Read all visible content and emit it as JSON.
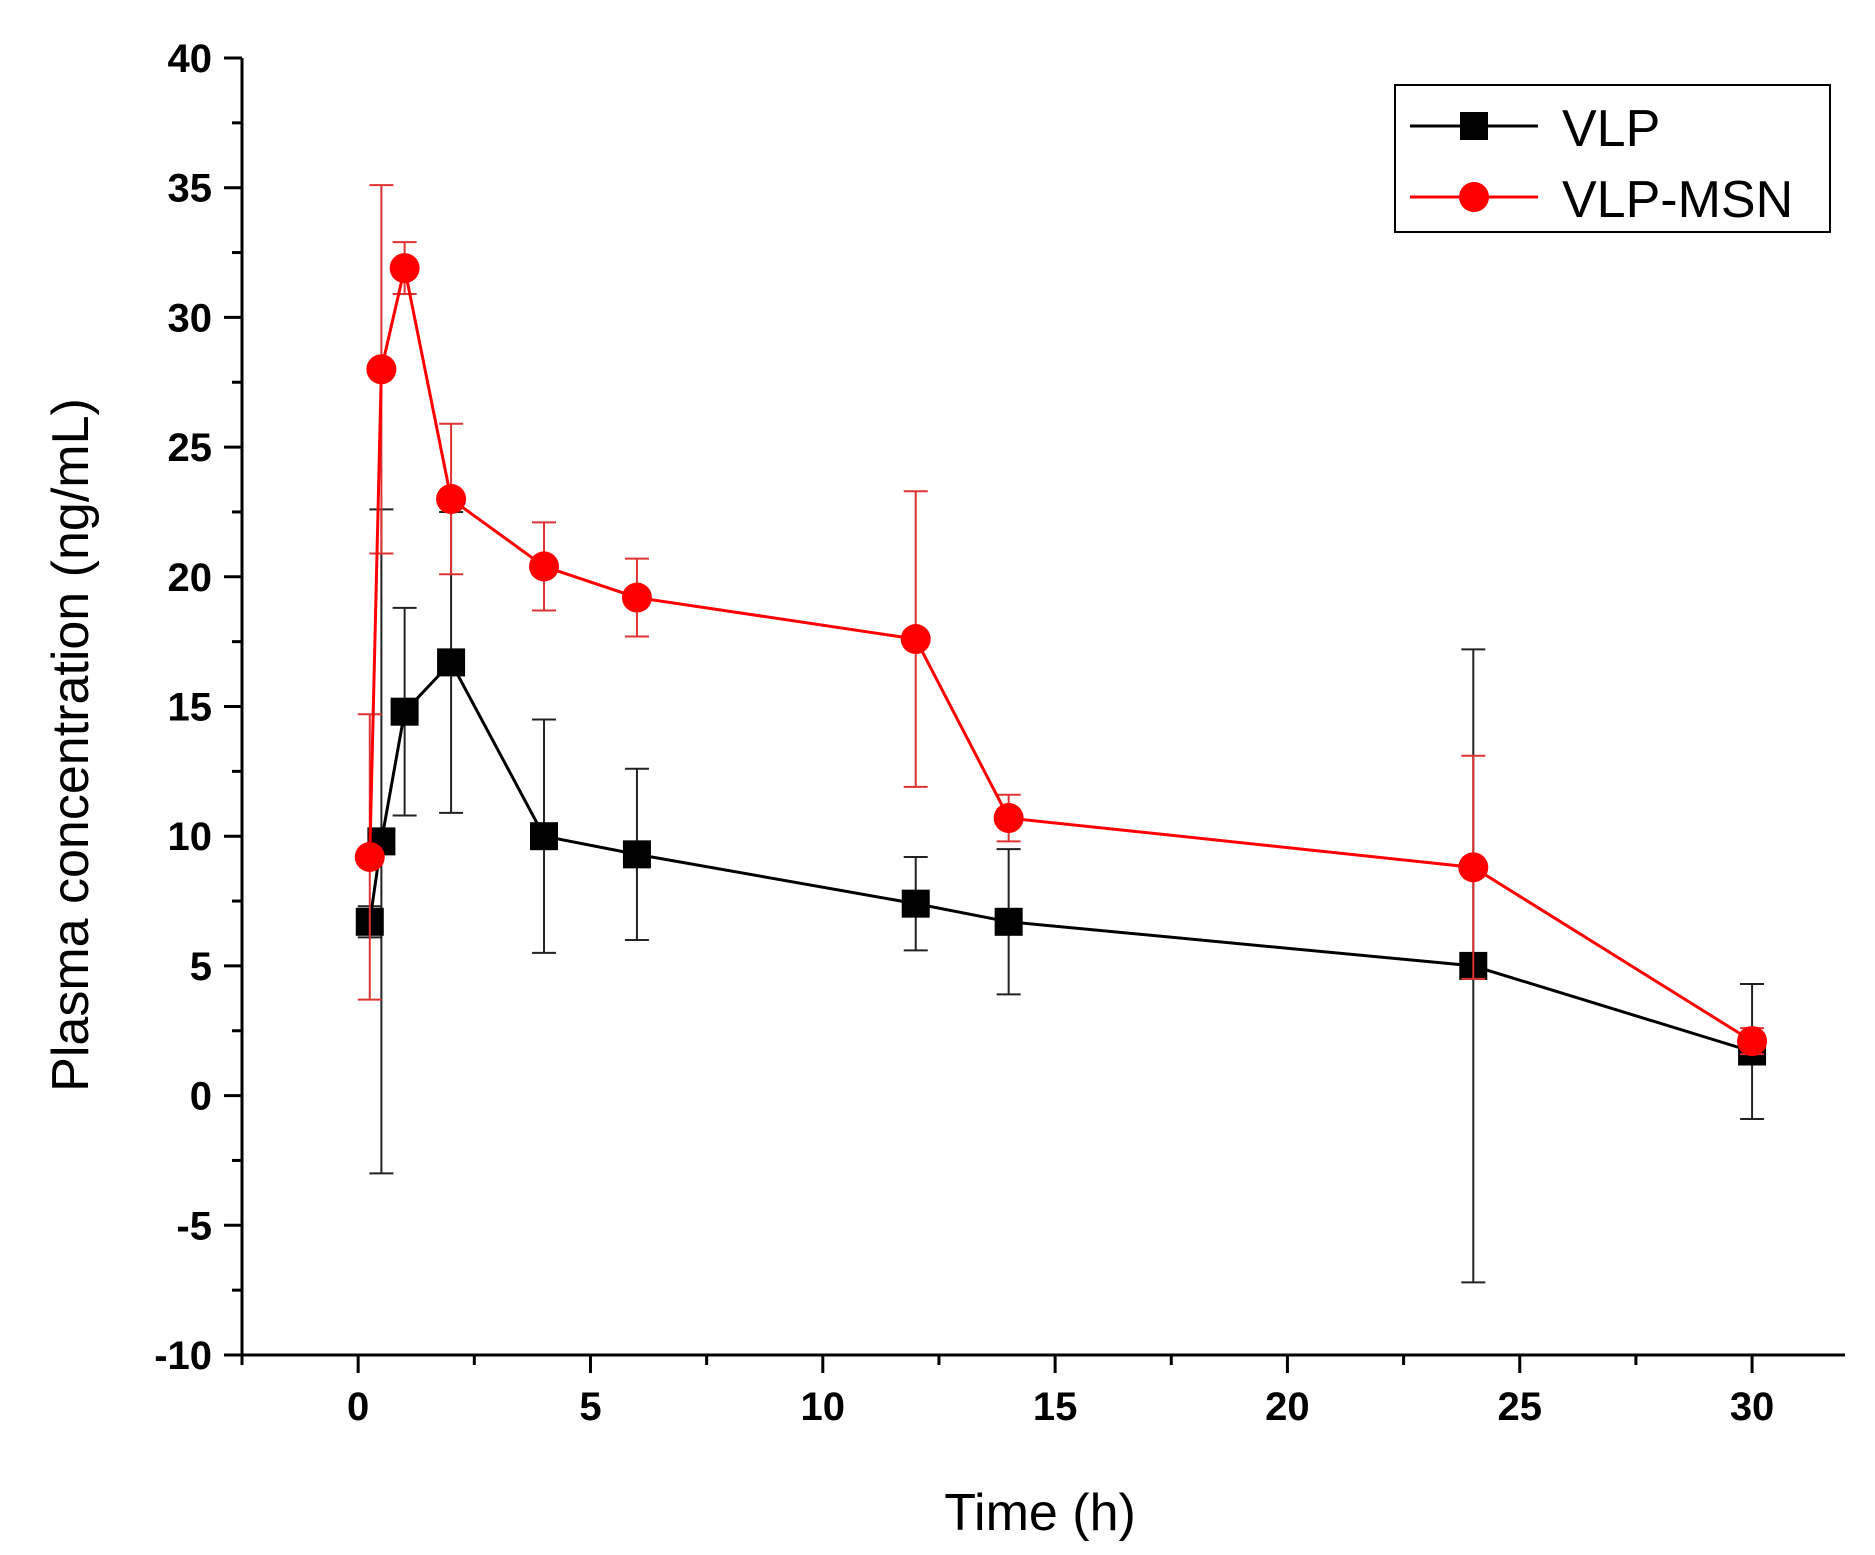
{
  "chart_data": {
    "type": "line",
    "title": "",
    "xlabel": "Time (h)",
    "ylabel": "Plasma concentration (ng/mL)",
    "xlim": [
      -2.5,
      32
    ],
    "ylim": [
      -10,
      40
    ],
    "xticks": [
      0,
      5,
      10,
      15,
      20,
      25,
      30
    ],
    "yticks": [
      -10,
      -5,
      0,
      5,
      10,
      15,
      20,
      25,
      30,
      35,
      40
    ],
    "grid": false,
    "legend_position": "top-right",
    "series": [
      {
        "name": "VLP",
        "color": "#000000",
        "marker": "square",
        "x": [
          0.25,
          0.5,
          1,
          2,
          4,
          6,
          12,
          14,
          24,
          30
        ],
        "y": [
          6.7,
          9.8,
          14.8,
          16.7,
          10.0,
          9.3,
          7.4,
          6.7,
          5.0,
          1.7
        ],
        "err": [
          0.6,
          12.8,
          4.0,
          5.8,
          4.5,
          3.3,
          1.8,
          2.8,
          12.2,
          2.6
        ]
      },
      {
        "name": "VLP-MSN",
        "color": "#ff0000",
        "marker": "circle",
        "x": [
          0.25,
          0.5,
          1,
          2,
          4,
          6,
          12,
          14,
          24,
          30
        ],
        "y": [
          9.2,
          28.0,
          31.9,
          23.0,
          20.4,
          19.2,
          17.6,
          10.7,
          8.8,
          2.1
        ],
        "err": [
          5.5,
          7.1,
          1.0,
          2.9,
          1.7,
          1.5,
          5.7,
          0.9,
          4.3,
          0.5
        ]
      }
    ]
  }
}
